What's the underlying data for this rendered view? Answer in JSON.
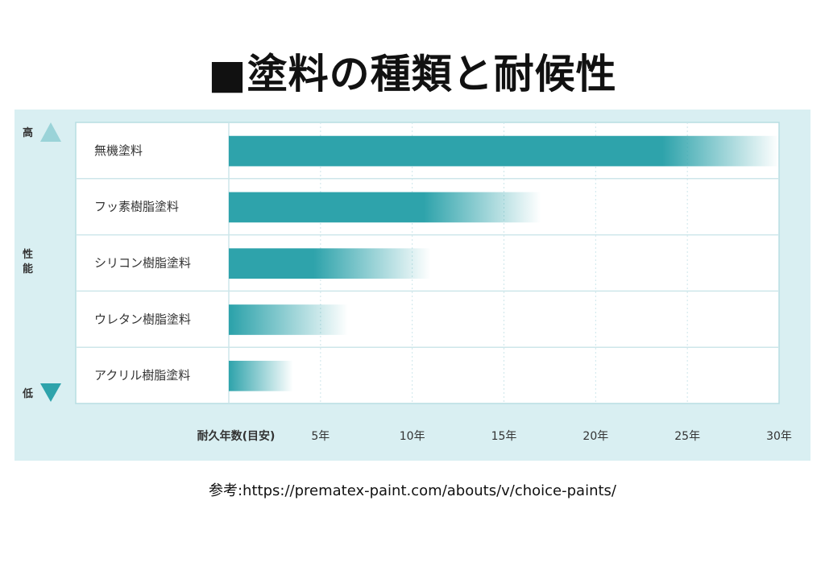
{
  "page": {
    "title": "■塗料の種類と耐候性",
    "source": "参考:https://prematex-paint.com/abouts/v/choice-paints/"
  },
  "performance_axis": {
    "high_label": "高",
    "label_line1": "性",
    "label_line2": "能",
    "low_label": "低"
  },
  "colors": {
    "bar": "#2ea3ab",
    "arrow": "#2ea3ab",
    "panel": "#d9eff2",
    "grid": "#cde6ea"
  },
  "chart_data": {
    "type": "bar",
    "orientation": "horizontal",
    "title": "■塗料の種類と耐候性",
    "xlabel": "耐久年数(目安)",
    "ylabel": "性能",
    "categories": [
      "無機塗料",
      "フッ素樹脂塗料",
      "シリコン樹脂塗料",
      "ウレタン樹脂塗料",
      "アクリル樹脂塗料"
    ],
    "values": [
      30,
      17,
      11,
      6.5,
      3.5
    ],
    "x_ticks": [
      5,
      10,
      15,
      20,
      25,
      30
    ],
    "x_tick_labels": [
      "5年",
      "10年",
      "15年",
      "20年",
      "25年",
      "30年"
    ],
    "xlim": [
      0,
      30
    ],
    "grid": true,
    "legend": "none"
  }
}
